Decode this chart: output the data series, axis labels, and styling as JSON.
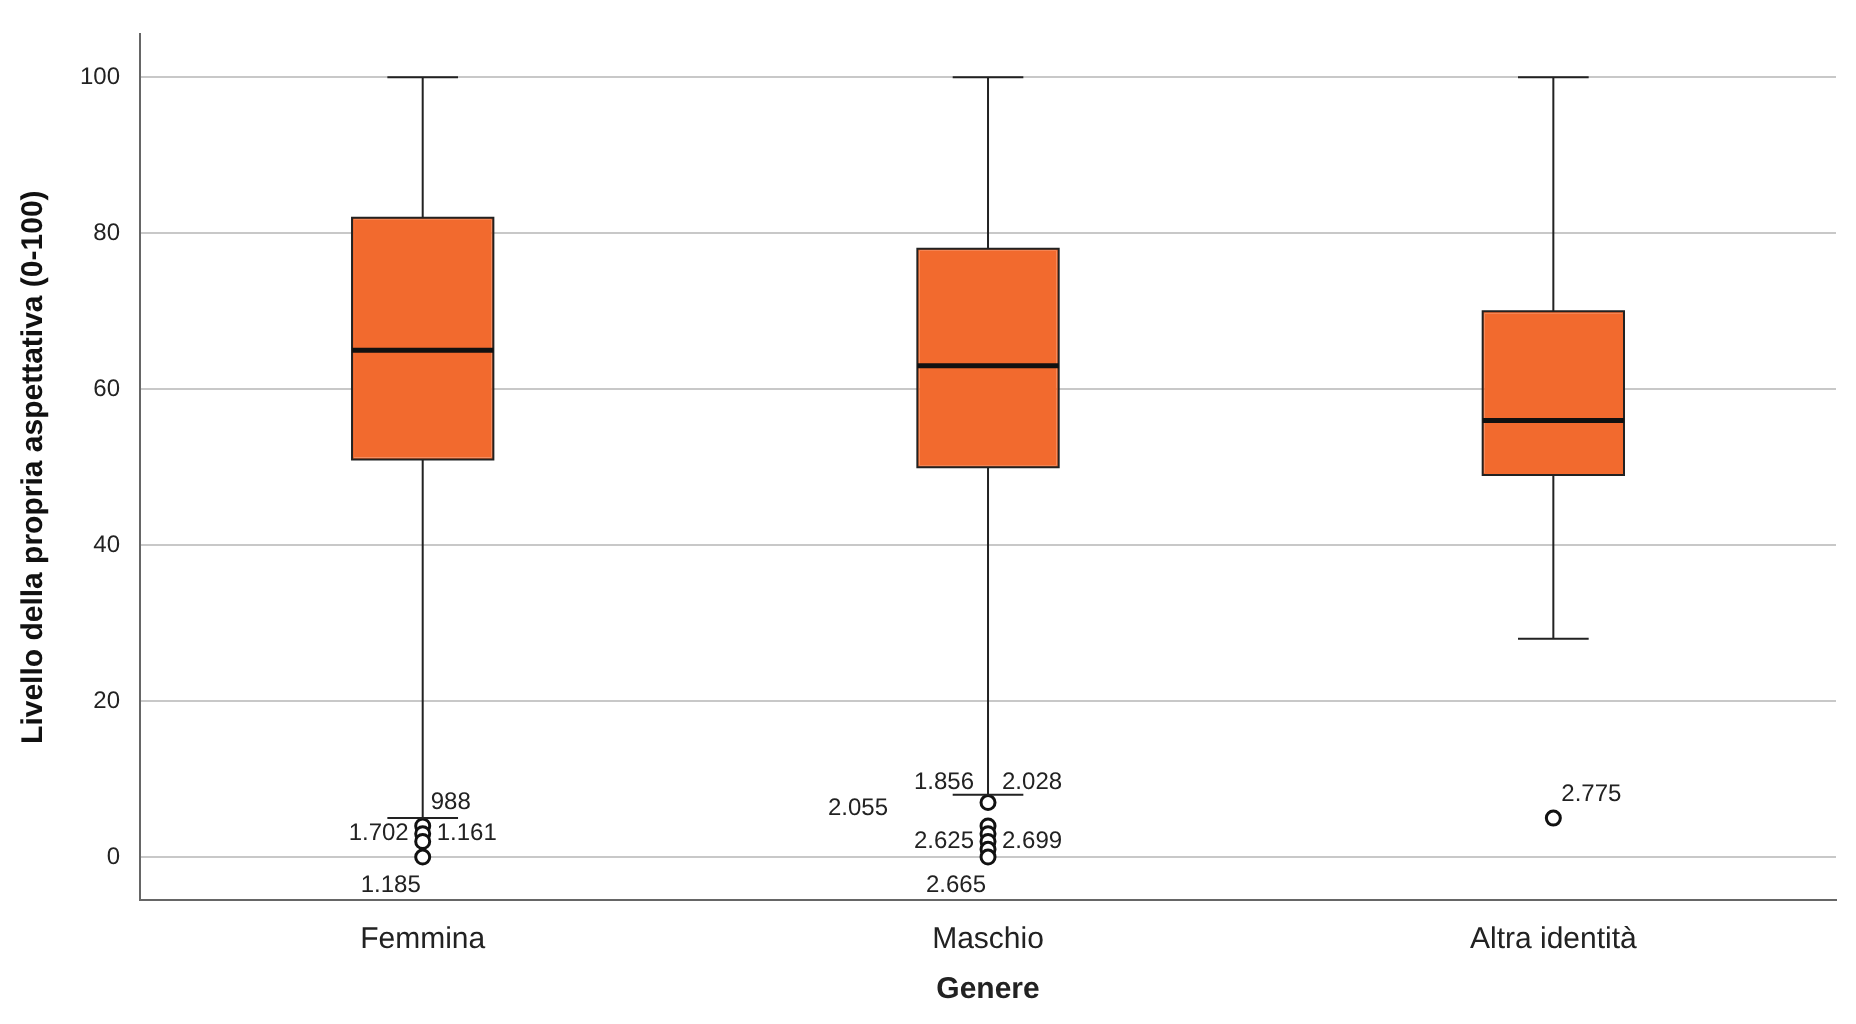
{
  "chart_data": {
    "type": "box",
    "xlabel": "Genere",
    "ylabel": "Livello della propria aspettativa (0-100)",
    "categories": [
      "Femmina",
      "Maschio",
      "Altra identità"
    ],
    "color": "#f26a2e",
    "boxes": [
      {
        "low": 5,
        "q1": 51,
        "median": 65,
        "q3": 82,
        "high": 100,
        "outliers": [
          4,
          3,
          2,
          0
        ]
      },
      {
        "low": 8,
        "q1": 50,
        "median": 63,
        "q3": 78,
        "high": 100,
        "outliers": [
          7,
          4,
          3,
          2,
          1,
          0
        ]
      },
      {
        "low": 28,
        "q1": 49,
        "median": 56,
        "q3": 70,
        "high": 100,
        "outliers": [
          5
        ]
      }
    ],
    "ylim": [
      -5.5,
      105.5
    ],
    "yticks": [
      0,
      20,
      40,
      60,
      80,
      100
    ],
    "grid": "y",
    "legend": false,
    "annotations": [
      "988",
      "1.702",
      "1.161",
      "1.185",
      "1.856",
      "2.028",
      "2.055",
      "2.625",
      "2.699",
      "2.665",
      "2.775"
    ]
  }
}
